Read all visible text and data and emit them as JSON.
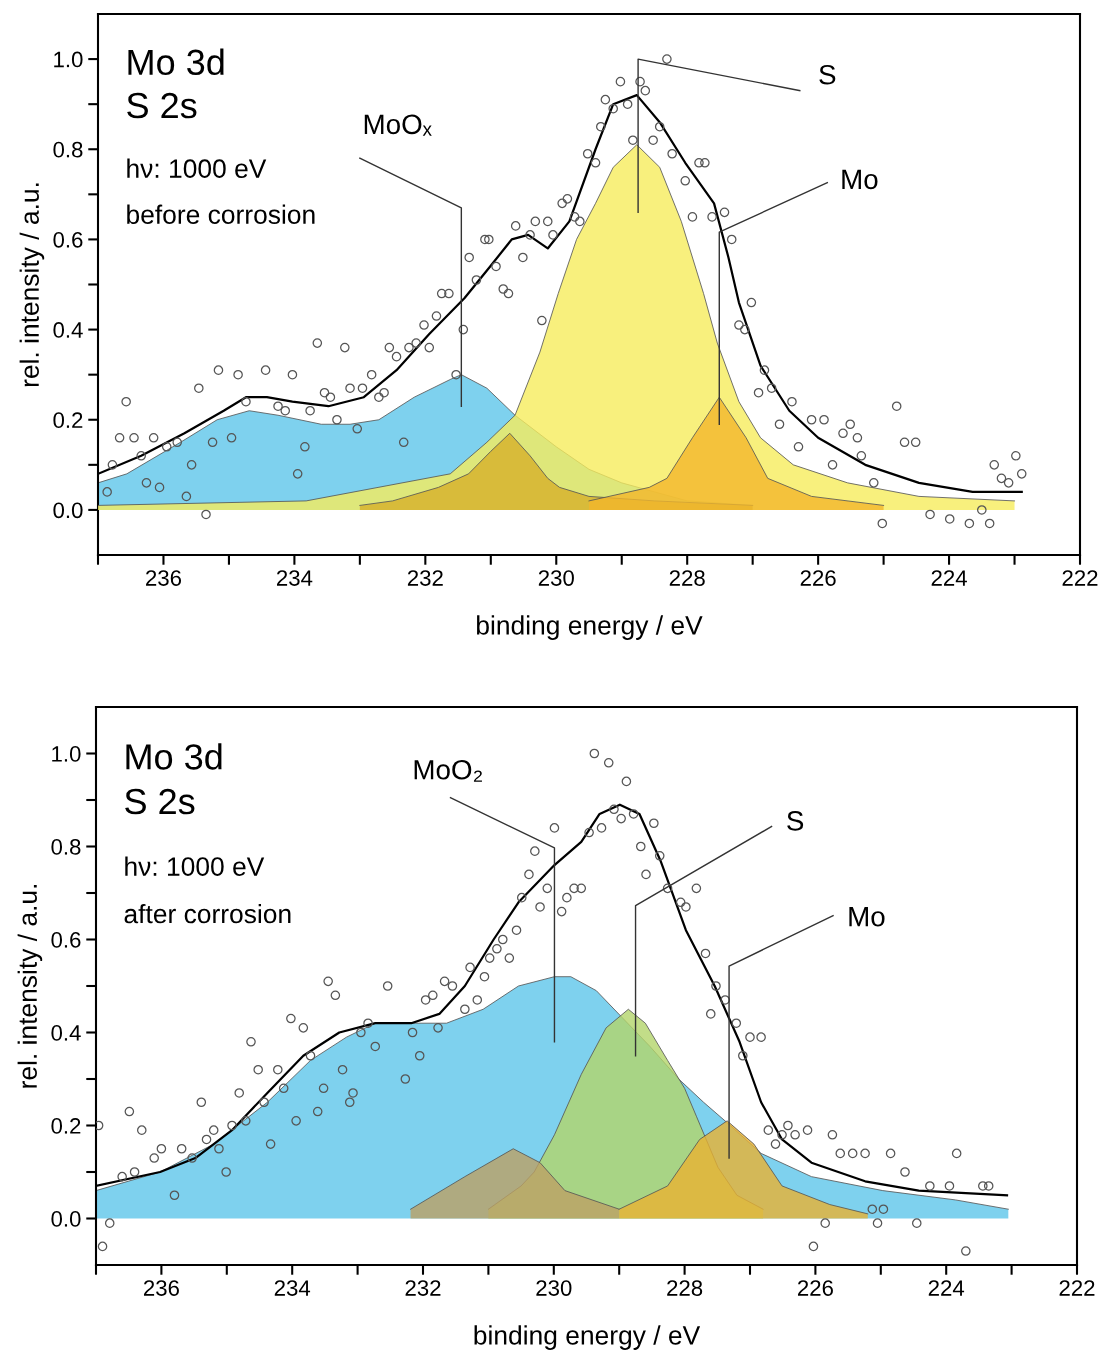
{
  "chart_data": [
    {
      "type": "line",
      "xlabel": "binding energy / eV",
      "ylabel": "rel. intensity / a.u.",
      "xlim": [
        237,
        222
      ],
      "ylim": [
        -0.1,
        1.1
      ],
      "xticks": [
        {
          "value": 237,
          "label": null
        },
        236,
        {
          "value": 235,
          "label": null
        },
        234,
        {
          "value": 233,
          "label": null
        },
        232,
        {
          "value": 231,
          "label": null
        },
        230,
        {
          "value": 229,
          "label": null
        },
        228,
        {
          "value": 227,
          "label": null
        },
        226,
        {
          "value": 225,
          "label": null
        },
        224,
        {
          "value": 223,
          "label": null
        },
        222
      ],
      "yticks": [
        {
          "value": 0,
          "label": "0.0"
        },
        {
          "value": 0.1,
          "label": null
        },
        0.2,
        {
          "value": 0.3,
          "label": null
        },
        0.4,
        {
          "value": 0.5,
          "label": null
        },
        0.6,
        {
          "value": 0.7,
          "label": null
        },
        0.8,
        {
          "value": 0.9,
          "label": null
        },
        {
          "value": 1.0,
          "label": "1.0"
        }
      ],
      "annotations": [
        "Mo 3d",
        "S 2s",
        "hν: 1000 eV",
        "before corrosion",
        "MoOₓ",
        "S",
        "Mo"
      ],
      "series": [
        {
          "type": "area",
          "color": "#5ec6ea",
          "x": [
            237.0,
            236.56,
            235.74,
            235.18,
            234.69,
            234.25,
            233.59,
            233.15,
            232.71,
            232.17,
            231.61,
            231.45,
            231.06,
            230.63,
            230.0,
            229.5,
            229.0,
            228.5,
            228.0,
            227.0
          ],
          "values": [
            0.06,
            0.08,
            0.15,
            0.2,
            0.22,
            0.21,
            0.19,
            0.19,
            0.2,
            0.25,
            0.29,
            0.3,
            0.27,
            0.21,
            0.14,
            0.09,
            0.06,
            0.04,
            0.02,
            0.01
          ]
        },
        {
          "type": "area",
          "color": "#f6ec5c",
          "x": [
            237.0,
            233.82,
            231.62,
            231.06,
            230.63,
            230.25,
            229.97,
            229.69,
            229.4,
            229.13,
            228.77,
            228.42,
            228.09,
            227.75,
            227.54,
            227.21,
            226.88,
            226.38,
            225.55,
            224.46,
            223.0
          ],
          "values": [
            0.01,
            0.02,
            0.08,
            0.15,
            0.21,
            0.35,
            0.48,
            0.6,
            0.68,
            0.76,
            0.81,
            0.76,
            0.64,
            0.48,
            0.37,
            0.24,
            0.16,
            0.1,
            0.06,
            0.03,
            0.02
          ]
        },
        {
          "type": "area",
          "color": "#d6b02a",
          "x": [
            233.0,
            232.5,
            231.8,
            231.34,
            231.0,
            230.71,
            230.4,
            230.13,
            229.95,
            229.5,
            228.5,
            227.0
          ],
          "values": [
            0.01,
            0.02,
            0.05,
            0.08,
            0.13,
            0.17,
            0.12,
            0.07,
            0.05,
            0.03,
            0.02,
            0.01
          ]
        },
        {
          "type": "area",
          "color": "#f3b62c",
          "x": [
            229.5,
            228.58,
            228.31,
            227.92,
            227.51,
            227.1,
            226.77,
            226.1,
            225.0
          ],
          "values": [
            0.02,
            0.05,
            0.07,
            0.16,
            0.25,
            0.16,
            0.07,
            0.03,
            0.01
          ]
        },
        {
          "color": "#000000",
          "x": [
            237.0,
            236.34,
            235.68,
            235.08,
            234.74,
            234.42,
            234.03,
            233.48,
            232.94,
            232.44,
            231.94,
            231.4,
            231.01,
            230.68,
            230.43,
            230.13,
            229.8,
            229.4,
            229.13,
            228.77,
            228.42,
            228.03,
            227.59,
            227.37,
            227.21,
            226.88,
            226.44,
            226.0,
            225.28,
            224.46,
            223.64,
            222.89
          ],
          "values": [
            0.08,
            0.12,
            0.17,
            0.22,
            0.25,
            0.25,
            0.24,
            0.23,
            0.25,
            0.31,
            0.39,
            0.47,
            0.54,
            0.6,
            0.61,
            0.58,
            0.64,
            0.8,
            0.9,
            0.92,
            0.86,
            0.77,
            0.68,
            0.56,
            0.46,
            0.32,
            0.22,
            0.16,
            0.1,
            0.06,
            0.04,
            0.04
          ]
        },
        {
          "type": "scatter",
          "color": "#555555",
          "marker": "circle",
          "x": [
            236.86,
            236.78,
            236.67,
            236.57,
            236.45,
            236.34,
            236.26,
            236.15,
            236.06,
            235.95,
            235.79,
            235.65,
            235.57,
            235.46,
            235.35,
            235.25,
            235.16,
            234.96,
            234.86,
            234.74,
            234.44,
            234.25,
            234.14,
            234.03,
            233.95,
            233.84,
            233.76,
            233.65,
            233.54,
            233.45,
            233.35,
            233.23,
            233.15,
            233.04,
            232.96,
            232.82,
            232.71,
            232.63,
            232.55,
            232.44,
            232.33,
            232.25,
            232.14,
            232.02,
            231.94,
            231.83,
            231.75,
            231.64,
            231.53,
            231.42,
            231.33,
            231.22,
            231.09,
            231.03,
            230.92,
            230.81,
            230.73,
            230.62,
            230.51,
            230.4,
            230.32,
            230.22,
            230.13,
            230.05,
            229.91,
            229.83,
            229.72,
            229.64,
            229.52,
            229.4,
            229.32,
            229.25,
            229.13,
            229.02,
            228.91,
            228.83,
            228.72,
            228.64,
            228.52,
            228.42,
            228.31,
            228.23,
            228.03,
            227.92,
            227.82,
            227.73,
            227.62,
            227.43,
            227.32,
            227.21,
            227.12,
            227.02,
            226.91,
            226.82,
            226.71,
            226.59,
            226.4,
            226.3,
            226.1,
            225.91,
            225.78,
            225.62,
            225.51,
            225.4,
            225.34,
            225.15,
            225.02,
            224.8,
            224.68,
            224.51,
            224.29,
            223.99,
            223.69,
            223.5,
            223.38,
            223.31,
            223.2,
            223.09,
            222.98,
            222.89
          ],
          "values": [
            0.04,
            0.1,
            0.16,
            0.24,
            0.16,
            0.12,
            0.06,
            0.16,
            0.05,
            0.14,
            0.15,
            0.03,
            0.1,
            0.27,
            -0.01,
            0.15,
            0.31,
            0.16,
            0.3,
            0.24,
            0.31,
            0.23,
            0.22,
            0.3,
            0.08,
            0.14,
            0.22,
            0.37,
            0.26,
            0.25,
            0.2,
            0.36,
            0.27,
            0.18,
            0.27,
            0.3,
            0.25,
            0.26,
            0.36,
            0.34,
            0.15,
            0.36,
            0.37,
            0.41,
            0.36,
            0.43,
            0.48,
            0.48,
            0.3,
            0.4,
            0.56,
            0.51,
            0.6,
            0.6,
            0.54,
            0.49,
            0.48,
            0.63,
            0.56,
            0.61,
            0.64,
            0.42,
            0.64,
            0.61,
            0.68,
            0.69,
            0.65,
            0.64,
            0.79,
            0.77,
            0.85,
            0.91,
            0.89,
            0.95,
            0.9,
            0.82,
            0.95,
            0.93,
            0.82,
            0.85,
            1.0,
            0.79,
            0.73,
            0.65,
            0.77,
            0.77,
            0.65,
            0.66,
            0.6,
            0.41,
            0.4,
            0.46,
            0.26,
            0.31,
            0.27,
            0.19,
            0.24,
            0.14,
            0.2,
            0.2,
            0.1,
            0.17,
            0.19,
            0.16,
            0.12,
            0.06,
            -0.03,
            0.23,
            0.15,
            0.15,
            -0.01,
            -0.02,
            -0.03,
            0.0,
            -0.03,
            0.1,
            0.07,
            0.06,
            0.12,
            0.08
          ]
        }
      ]
    },
    {
      "type": "line",
      "xlabel": "binding energy / eV",
      "ylabel": "rel. intensity / a.u.",
      "xlim": [
        237,
        222
      ],
      "ylim": [
        -0.1,
        1.1
      ],
      "xticks": [
        {
          "value": 237,
          "label": null
        },
        236,
        {
          "value": 235,
          "label": null
        },
        234,
        {
          "value": 233,
          "label": null
        },
        232,
        {
          "value": 231,
          "label": null
        },
        230,
        {
          "value": 229,
          "label": null
        },
        228,
        {
          "value": 227,
          "label": null
        },
        226,
        {
          "value": 225,
          "label": null
        },
        224,
        {
          "value": 223,
          "label": null
        },
        222
      ],
      "yticks": [
        {
          "value": 0,
          "label": "0.0"
        },
        {
          "value": 0.1,
          "label": null
        },
        0.2,
        {
          "value": 0.3,
          "label": null
        },
        0.4,
        {
          "value": 0.5,
          "label": null
        },
        0.6,
        {
          "value": 0.7,
          "label": null
        },
        0.8,
        {
          "value": 0.9,
          "label": null
        },
        {
          "value": 1.0,
          "label": "1.0"
        }
      ],
      "annotations": [
        "Mo 3d",
        "S 2s",
        "hν: 1000 eV",
        "after corrosion",
        "MoO₂",
        "S",
        "Mo"
      ],
      "series": [
        {
          "type": "area",
          "color": "#5ec6ea",
          "x": [
            237.0,
            236.02,
            235.2,
            234.38,
            233.72,
            233.17,
            232.73,
            232.18,
            231.64,
            231.08,
            230.54,
            229.99,
            229.74,
            229.35,
            228.53,
            228.09,
            227.71,
            227.3,
            226.83,
            226.06,
            224.97,
            223.86,
            223.05
          ],
          "values": [
            0.06,
            0.1,
            0.16,
            0.25,
            0.34,
            0.39,
            0.42,
            0.42,
            0.42,
            0.45,
            0.5,
            0.52,
            0.52,
            0.49,
            0.37,
            0.3,
            0.25,
            0.2,
            0.14,
            0.09,
            0.06,
            0.04,
            0.02
          ]
        },
        {
          "type": "area",
          "color": "#b3d46a",
          "x": [
            231.0,
            230.5,
            230.3,
            229.99,
            229.58,
            229.2,
            228.86,
            228.6,
            228.26,
            228.0,
            227.82,
            227.49,
            227.2,
            226.8
          ],
          "values": [
            0.02,
            0.07,
            0.1,
            0.18,
            0.31,
            0.41,
            0.45,
            0.42,
            0.34,
            0.28,
            0.22,
            0.11,
            0.05,
            0.02
          ]
        },
        {
          "type": "area",
          "color": "#bba064",
          "x": [
            232.19,
            231.36,
            230.62,
            230.21,
            229.83,
            229.0
          ],
          "values": [
            0.02,
            0.09,
            0.15,
            0.12,
            0.06,
            0.02
          ]
        },
        {
          "type": "area",
          "color": "#e8b232",
          "x": [
            229.0,
            228.26,
            227.77,
            227.35,
            226.94,
            226.51,
            225.78,
            225.2
          ],
          "values": [
            0.02,
            0.07,
            0.17,
            0.21,
            0.16,
            0.07,
            0.03,
            0.01
          ]
        },
        {
          "color": "#000000",
          "x": [
            237.0,
            236.02,
            235.48,
            234.92,
            234.38,
            233.83,
            233.28,
            232.73,
            232.18,
            231.75,
            231.36,
            230.92,
            230.54,
            229.99,
            229.58,
            229.3,
            228.99,
            228.69,
            228.37,
            227.98,
            227.54,
            227.16,
            226.83,
            226.51,
            226.06,
            225.24,
            224.42,
            223.07
          ],
          "values": [
            0.07,
            0.1,
            0.13,
            0.19,
            0.27,
            0.35,
            0.4,
            0.42,
            0.42,
            0.44,
            0.5,
            0.6,
            0.68,
            0.76,
            0.81,
            0.87,
            0.89,
            0.87,
            0.77,
            0.62,
            0.5,
            0.38,
            0.25,
            0.17,
            0.12,
            0.08,
            0.06,
            0.05
          ]
        },
        {
          "type": "scatter",
          "color": "#555555",
          "marker": "circle",
          "x": [
            236.96,
            236.9,
            236.79,
            236.6,
            236.49,
            236.41,
            236.3,
            236.11,
            236.0,
            235.8,
            235.69,
            235.53,
            235.39,
            235.31,
            235.2,
            235.12,
            235.01,
            234.92,
            234.81,
            234.71,
            234.63,
            234.52,
            234.43,
            234.33,
            234.22,
            234.13,
            234.02,
            233.94,
            233.83,
            233.72,
            233.61,
            233.52,
            233.45,
            233.34,
            233.23,
            233.12,
            233.07,
            232.95,
            232.84,
            232.73,
            232.54,
            232.27,
            232.16,
            232.05,
            231.96,
            231.85,
            231.77,
            231.67,
            231.55,
            231.36,
            231.28,
            231.17,
            231.06,
            230.98,
            230.87,
            230.78,
            230.68,
            230.57,
            230.49,
            230.38,
            230.29,
            230.21,
            230.1,
            229.99,
            229.88,
            229.8,
            229.69,
            229.58,
            229.46,
            229.38,
            229.27,
            229.16,
            229.08,
            228.97,
            228.89,
            228.78,
            228.67,
            228.59,
            228.47,
            228.38,
            228.26,
            228.06,
            227.98,
            227.82,
            227.68,
            227.6,
            227.52,
            227.38,
            227.21,
            227.11,
            227.0,
            226.83,
            226.72,
            226.61,
            226.51,
            226.42,
            226.31,
            226.12,
            226.03,
            225.85,
            225.74,
            225.62,
            225.43,
            225.24,
            225.13,
            225.05,
            224.96,
            224.85,
            224.63,
            224.45,
            224.25,
            223.95,
            223.84,
            223.7,
            223.44,
            223.35
          ],
          "values": [
            0.2,
            -0.06,
            -0.01,
            0.09,
            0.23,
            0.1,
            0.19,
            0.13,
            0.15,
            0.05,
            0.15,
            0.13,
            0.25,
            0.17,
            0.19,
            0.15,
            0.1,
            0.2,
            0.27,
            0.21,
            0.38,
            0.32,
            0.25,
            0.16,
            0.32,
            0.28,
            0.43,
            0.21,
            0.41,
            0.35,
            0.23,
            0.28,
            0.51,
            0.48,
            0.32,
            0.25,
            0.27,
            0.4,
            0.42,
            0.37,
            0.5,
            0.3,
            0.4,
            0.35,
            0.47,
            0.48,
            0.41,
            0.51,
            0.5,
            0.45,
            0.54,
            0.47,
            0.52,
            0.56,
            0.58,
            0.6,
            0.56,
            0.62,
            0.69,
            0.74,
            0.79,
            0.67,
            0.71,
            0.84,
            0.66,
            0.69,
            0.71,
            0.71,
            0.83,
            1.0,
            0.84,
            0.98,
            0.88,
            0.86,
            0.94,
            0.87,
            0.8,
            0.74,
            0.85,
            0.78,
            0.71,
            0.68,
            0.67,
            0.71,
            0.57,
            0.44,
            0.5,
            0.47,
            0.42,
            0.35,
            0.39,
            0.39,
            0.19,
            0.16,
            0.18,
            0.2,
            0.18,
            0.19,
            -0.06,
            -0.01,
            0.18,
            0.14,
            0.14,
            0.14,
            0.02,
            -0.01,
            0.02,
            0.14,
            0.1,
            -0.01,
            0.07,
            0.07,
            0.14,
            -0.07,
            0.07,
            0.07
          ]
        }
      ]
    }
  ]
}
